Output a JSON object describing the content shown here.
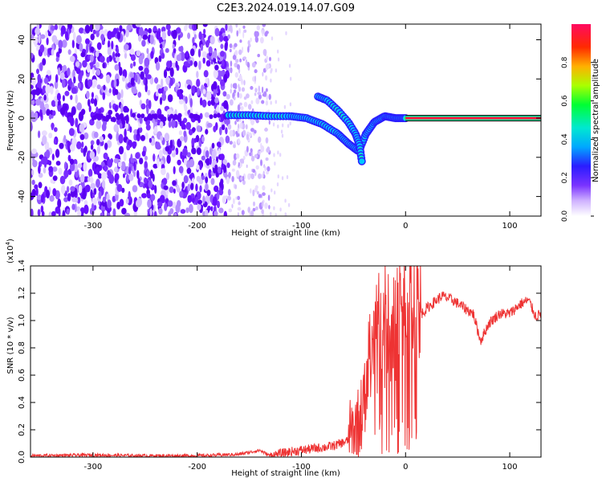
{
  "page_title": "C2E3.2024.019.14.07.G09",
  "chart_data": [
    {
      "type": "heatmap",
      "xlabel": "Height of straight line (km)",
      "ylabel": "Frequency (Hz)",
      "xlim": [
        -360,
        130
      ],
      "ylim": [
        -50,
        48
      ],
      "xticks": [
        -300,
        -200,
        -100,
        0,
        100
      ],
      "yticks": [
        -40,
        -20,
        0,
        20,
        40
      ],
      "colorbar": {
        "label": "Normalized spectral amplitude",
        "range": [
          0.0,
          1.0
        ],
        "ticks": [
          "0.0",
          "0.2",
          "0.4",
          "0.6",
          "0.8"
        ]
      },
      "features": {
        "carrier_line": {
          "x_start": 0,
          "x_end": 130,
          "frequency": 0,
          "amplitude": 0.95
        },
        "main_trace": [
          [
            -170,
            1.5
          ],
          [
            -150,
            1.5
          ],
          [
            -130,
            1
          ],
          [
            -110,
            1
          ],
          [
            -95,
            0
          ],
          [
            -80,
            -3
          ],
          [
            -65,
            -8
          ],
          [
            -55,
            -13
          ],
          [
            -45,
            -17
          ],
          [
            -38,
            -8
          ],
          [
            -30,
            -2
          ],
          [
            -20,
            1
          ],
          [
            -10,
            0
          ],
          [
            0,
            0
          ]
        ],
        "branch_trace": [
          [
            -84,
            11
          ],
          [
            -75,
            9
          ],
          [
            -65,
            4
          ],
          [
            -55,
            -2
          ],
          [
            -48,
            -8
          ],
          [
            -44,
            -14
          ],
          [
            -42,
            -22
          ]
        ],
        "noise_region": {
          "x_start": -360,
          "x_end": -170
        },
        "sparse_region": {
          "x_start": -170,
          "x_end": -130
        }
      }
    },
    {
      "type": "line",
      "xlabel": "Height of straight line (km)",
      "ylabel": "SNR (10 * v/v)",
      "y_multiplier": "(x10",
      "y_multiplier_exp": "4",
      "y_multiplier_close": ")",
      "xlim": [
        -360,
        130
      ],
      "ylim": [
        0.0,
        1.4
      ],
      "xticks": [
        -300,
        -200,
        -100,
        0,
        100
      ],
      "yticks": [
        "0.0",
        "0.2",
        "0.4",
        "0.6",
        "0.8",
        "1.0",
        "1.2",
        "1.4"
      ],
      "series": [
        {
          "color": "#ee3333",
          "points": [
            [
              -360,
              0.01
            ],
            [
              -300,
              0.015
            ],
            [
              -250,
              0.01
            ],
            [
              -200,
              0.01
            ],
            [
              -160,
              0.02
            ],
            [
              -140,
              0.05
            ],
            [
              -130,
              0.01
            ],
            [
              -110,
              0.04
            ],
            [
              -90,
              0.06
            ],
            [
              -70,
              0.08
            ],
            [
              -55,
              0.12
            ],
            [
              -45,
              0.25
            ],
            [
              -38,
              0.45
            ],
            [
              -32,
              0.8
            ],
            [
              -25,
              0.9
            ],
            [
              -15,
              0.95
            ],
            [
              -5,
              1.0
            ],
            [
              5,
              1.05
            ],
            [
              15,
              1.05
            ],
            [
              25,
              1.12
            ],
            [
              35,
              1.18
            ],
            [
              45,
              1.15
            ],
            [
              55,
              1.1
            ],
            [
              65,
              1.05
            ],
            [
              72,
              0.85
            ],
            [
              80,
              0.98
            ],
            [
              90,
              1.05
            ],
            [
              100,
              1.05
            ],
            [
              110,
              1.12
            ],
            [
              118,
              1.15
            ],
            [
              125,
              1.03
            ],
            [
              130,
              1.05
            ]
          ]
        }
      ]
    }
  ]
}
